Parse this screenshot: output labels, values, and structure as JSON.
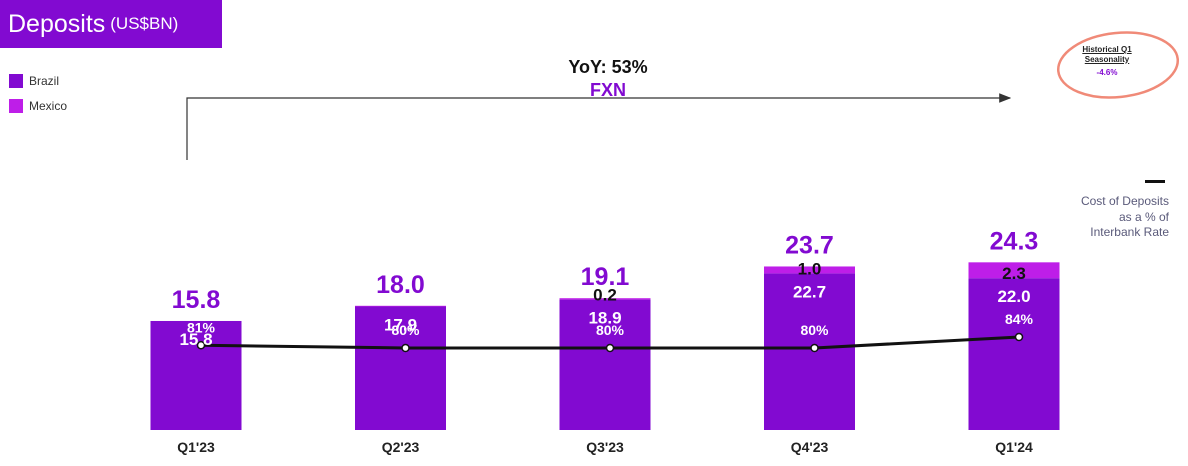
{
  "header": {
    "title": "Deposits",
    "unit": "(US$BN)"
  },
  "annotations": {
    "yoy": "YoY: 53%",
    "fx": "FXN",
    "seasonality_title": "Historical Q1 Seasonality",
    "seasonality_value": "-4.6%",
    "cost_legend": "Cost of Deposits as a % of Interbank Rate"
  },
  "colors": {
    "brazil": "#820AD1",
    "mexico": "#BE1EE8",
    "accent": "#820AD1",
    "line": "#111111",
    "circle": "#F08A78"
  },
  "chart_data": {
    "type": "bar",
    "stacked": true,
    "categories": [
      "Q1'23",
      "Q2'23",
      "Q3'23",
      "Q4'23",
      "Q1'24"
    ],
    "series": [
      {
        "name": "Brazil",
        "values": [
          15.8,
          17.9,
          18.9,
          22.7,
          22.0
        ],
        "labels": [
          "15.8",
          "17.9",
          "18.9",
          "22.7",
          "22.0"
        ]
      },
      {
        "name": "Mexico",
        "values": [
          0,
          0.1,
          0.2,
          1.0,
          2.3
        ],
        "labels": [
          "",
          "",
          "0.2",
          "1.0",
          "2.3"
        ]
      }
    ],
    "totals": [
      15.8,
      18.0,
      19.1,
      23.7,
      24.3
    ],
    "total_labels": [
      "15.8",
      "18.0",
      "19.1",
      "23.7",
      "24.3"
    ],
    "line_series": {
      "name": "Cost of Deposits as a % of Interbank Rate",
      "values": [
        81,
        80,
        80,
        80,
        84
      ],
      "labels": [
        "81%",
        "80%",
        "80%",
        "80%",
        "84%"
      ]
    },
    "legend": [
      "Brazil",
      "Mexico"
    ],
    "legend_position": "top-left",
    "grid": false
  }
}
